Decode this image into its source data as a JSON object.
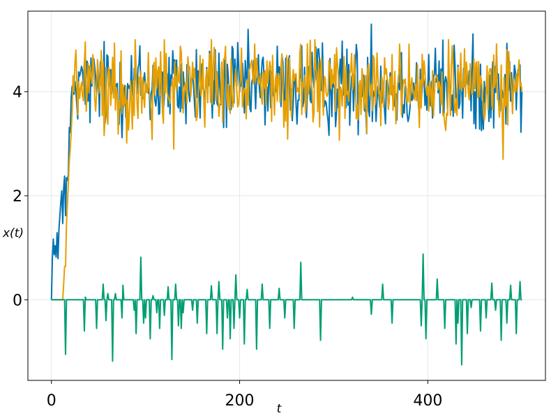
{
  "chart_data": {
    "type": "line",
    "title": "",
    "xlabel": "t",
    "ylabel": "x(t)",
    "xlim": [
      -25,
      525
    ],
    "ylim": [
      -1.55,
      5.55
    ],
    "xticks": [
      0,
      200,
      400
    ],
    "yticks": [
      0,
      2,
      4
    ],
    "xtick_labels": [
      "0",
      "200",
      "400"
    ],
    "ytick_labels": [
      "0",
      "2",
      "4"
    ],
    "grid": true,
    "legend": "none",
    "n_points": 500,
    "series": [
      {
        "color": "#0072b2",
        "description_of_shape": "starts at 0, rises noisily to ~2 by t~18, then fluctuates around ~4.1",
        "key_points": {
          "x": [
            0,
            2,
            5,
            10,
            15,
            18,
            20,
            25,
            30,
            100,
            200,
            300,
            340,
            400,
            450,
            500
          ],
          "y": [
            0,
            1.6,
            0.7,
            1.8,
            2.0,
            2.5,
            3.3,
            4.2,
            4.3,
            4.1,
            4.0,
            4.1,
            5.3,
            4.1,
            4.0,
            4.0
          ]
        },
        "noise_range": [
          3.1,
          5.2
        ],
        "level": 4.1
      },
      {
        "color": "#e69f00",
        "description_of_shape": "starts at 0 at t~12, rises steeply to ~4 by t~25, then fluctuates around ~4.1",
        "key_points": {
          "x": [
            0,
            12,
            14,
            18,
            22,
            26,
            100,
            200,
            300,
            400,
            480,
            500
          ],
          "y": [
            0,
            0,
            0.6,
            2.0,
            3.9,
            4.6,
            4.2,
            4.1,
            4.2,
            4.1,
            2.7,
            4.0
          ]
        },
        "noise_range": [
          2.7,
          5.0
        ],
        "level": 4.1
      },
      {
        "color": "#009e73",
        "description_of_shape": "difference series: mostly 0 with sparse spikes",
        "spikes": {
          "x": [
            15,
            35,
            36,
            48,
            55,
            58,
            60,
            65,
            68,
            75,
            76,
            88,
            90,
            95,
            98,
            100,
            105,
            108,
            112,
            115,
            120,
            124,
            128,
            132,
            135,
            138,
            140,
            150,
            155,
            165,
            170,
            176,
            178,
            182,
            187,
            190,
            194,
            196,
            200,
            205,
            208,
            218,
            224,
            232,
            242,
            248,
            258,
            265,
            286,
            320,
            340,
            352,
            362,
            393,
            395,
            398,
            410,
            418,
            430,
            432,
            436,
            442,
            446,
            456,
            462,
            468,
            472,
            478,
            484,
            488,
            494,
            498
          ],
          "y": [
            -1.05,
            -0.6,
            0.05,
            -0.55,
            0.3,
            -0.4,
            0.12,
            -1.18,
            0.12,
            -0.35,
            0.28,
            -0.2,
            -0.65,
            0.82,
            -0.45,
            -0.35,
            -0.75,
            0.08,
            -0.25,
            -0.55,
            -0.3,
            0.25,
            -1.15,
            0.3,
            -0.5,
            -0.55,
            -0.25,
            -0.2,
            -0.45,
            -0.65,
            0.27,
            -0.65,
            0.35,
            -0.95,
            -0.35,
            -0.75,
            -0.55,
            0.48,
            -0.35,
            -0.85,
            0.2,
            -0.95,
            0.3,
            -0.55,
            0.22,
            -0.35,
            -0.55,
            0.72,
            -0.78,
            0.05,
            -0.28,
            0.3,
            -0.45,
            -0.5,
            0.88,
            -0.75,
            0.4,
            -0.55,
            -0.85,
            -0.45,
            -1.25,
            -0.65,
            -0.15,
            -0.6,
            -0.35,
            0.32,
            -0.2,
            -0.78,
            -0.45,
            0.28,
            -0.65,
            0.35
          ]
        }
      }
    ]
  }
}
